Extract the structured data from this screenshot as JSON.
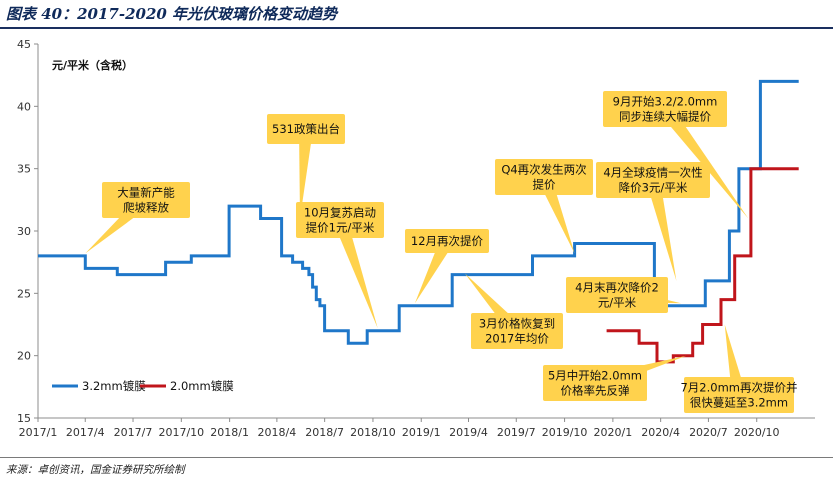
{
  "figure": {
    "title": "图表 40：2017-2020 年光伏玻璃价格变动趋势",
    "source": "来源：卓创资讯，国金证券研究所绘制"
  },
  "colors": {
    "series_3_2mm": "#1f77c9",
    "series_2_0mm": "#c0151b",
    "callout_fill": "#ffd24d",
    "title_color": "#0f2a5a"
  },
  "chart_data": {
    "type": "line",
    "title": "",
    "xlabel": "",
    "ylabel": "元/平米（含税）",
    "ylim": [
      15,
      45
    ],
    "y_ticks": [
      15,
      20,
      25,
      30,
      35,
      40,
      45
    ],
    "x_ticks": [
      "2017/1",
      "2017/4",
      "2017/7",
      "2017/10",
      "2018/1",
      "2018/4",
      "2018/7",
      "2018/10",
      "2019/1",
      "2019/4",
      "2019/7",
      "2019/10",
      "2020/1",
      "2020/4",
      "2020/7",
      "2020/10"
    ],
    "grid": false,
    "legend_position": "bottom-left",
    "series": [
      {
        "name": "3.2mm镀膜",
        "points": [
          [
            "2017-01-01",
            28
          ],
          [
            "2017-04-01",
            28
          ],
          [
            "2017-04-01",
            27
          ],
          [
            "2017-06-01",
            27
          ],
          [
            "2017-06-01",
            26.5
          ],
          [
            "2017-09-01",
            26.5
          ],
          [
            "2017-09-01",
            27.5
          ],
          [
            "2017-10-20",
            27.5
          ],
          [
            "2017-10-20",
            28
          ],
          [
            "2017-12-31",
            28
          ],
          [
            "2017-12-31",
            32
          ],
          [
            "2018-03-01",
            32
          ],
          [
            "2018-03-01",
            31
          ],
          [
            "2018-04-10",
            31
          ],
          [
            "2018-04-10",
            28
          ],
          [
            "2018-05-01",
            28
          ],
          [
            "2018-05-01",
            27.5
          ],
          [
            "2018-05-20",
            27.5
          ],
          [
            "2018-05-20",
            27
          ],
          [
            "2018-06-01",
            27
          ],
          [
            "2018-06-01",
            26.5
          ],
          [
            "2018-06-08",
            26.5
          ],
          [
            "2018-06-08",
            25.5
          ],
          [
            "2018-06-15",
            25.5
          ],
          [
            "2018-06-15",
            24.5
          ],
          [
            "2018-06-22",
            24.5
          ],
          [
            "2018-06-22",
            24
          ],
          [
            "2018-07-01",
            24
          ],
          [
            "2018-07-01",
            22
          ],
          [
            "2018-08-15",
            22
          ],
          [
            "2018-08-15",
            21
          ],
          [
            "2018-09-20",
            21
          ],
          [
            "2018-09-20",
            22
          ],
          [
            "2018-11-20",
            22
          ],
          [
            "2018-11-20",
            24
          ],
          [
            "2019-03-01",
            24
          ],
          [
            "2019-03-01",
            26.5
          ],
          [
            "2019-08-01",
            26.5
          ],
          [
            "2019-08-01",
            28
          ],
          [
            "2019-10-20",
            28
          ],
          [
            "2019-10-20",
            29
          ],
          [
            "2020-03-20",
            29
          ],
          [
            "2020-03-20",
            26
          ],
          [
            "2020-04-10",
            26
          ],
          [
            "2020-04-10",
            24
          ],
          [
            "2020-06-25",
            24
          ],
          [
            "2020-06-25",
            26
          ],
          [
            "2020-08-10",
            26
          ],
          [
            "2020-08-10",
            30
          ],
          [
            "2020-08-28",
            30
          ],
          [
            "2020-08-28",
            35
          ],
          [
            "2020-10-08",
            35
          ],
          [
            "2020-10-08",
            42
          ],
          [
            "2020-12-20",
            42
          ]
        ]
      },
      {
        "name": "2.0mm镀膜",
        "points": [
          [
            "2019-12-20",
            22
          ],
          [
            "2020-02-20",
            22
          ],
          [
            "2020-02-20",
            21
          ],
          [
            "2020-03-25",
            21
          ],
          [
            "2020-03-25",
            19.5
          ],
          [
            "2020-04-25",
            19.5
          ],
          [
            "2020-04-25",
            20
          ],
          [
            "2020-06-01",
            20
          ],
          [
            "2020-06-01",
            21
          ],
          [
            "2020-06-20",
            21
          ],
          [
            "2020-06-20",
            22.5
          ],
          [
            "2020-07-25",
            22.5
          ],
          [
            "2020-07-25",
            24.5
          ],
          [
            "2020-08-20",
            24.5
          ],
          [
            "2020-08-20",
            28
          ],
          [
            "2020-09-20",
            28
          ],
          [
            "2020-09-20",
            35
          ],
          [
            "2020-12-20",
            35
          ]
        ]
      }
    ],
    "annotations": [
      {
        "lines": [
          "大量新产能",
          "爬坡释放"
        ],
        "target": [
          "2017-04-01",
          28.2
        ]
      },
      {
        "lines": [
          "531政策出台"
        ],
        "target": [
          "2018-05-15",
          31
        ]
      },
      {
        "lines": [
          "10月复苏启动",
          "提价1元/平米"
        ],
        "target": [
          "2018-10-10",
          22.2
        ]
      },
      {
        "lines": [
          "12月再次提价"
        ],
        "target": [
          "2018-12-20",
          24.2
        ]
      },
      {
        "lines": [
          "3月价格恢复到",
          "2017年均价"
        ],
        "target": [
          "2019-03-25",
          26.6
        ]
      },
      {
        "lines": [
          "Q4再次发生两次",
          "提价"
        ],
        "target": [
          "2019-10-20",
          28.2
        ]
      },
      {
        "lines": [
          "4月全球疫情一次性",
          "降价3元/平米"
        ],
        "target": [
          "2020-05-01",
          26
        ]
      },
      {
        "lines": [
          "9月开始3.2/2.0mm",
          "同步连续大幅提价"
        ],
        "target": [
          "2020-09-15",
          31
        ]
      },
      {
        "lines": [
          "4月末再次降价2",
          "元/平米"
        ],
        "target": [
          "2020-05-10",
          24.2
        ]
      },
      {
        "lines": [
          "5月中开始2.0mm",
          "价格率先反弹"
        ],
        "target": [
          "2020-05-20",
          20
        ]
      },
      {
        "lines": [
          "7月2.0mm再次提价并",
          "很快蔓延至3.2mm"
        ],
        "target": [
          "2020-08-01",
          22.5
        ]
      }
    ]
  }
}
